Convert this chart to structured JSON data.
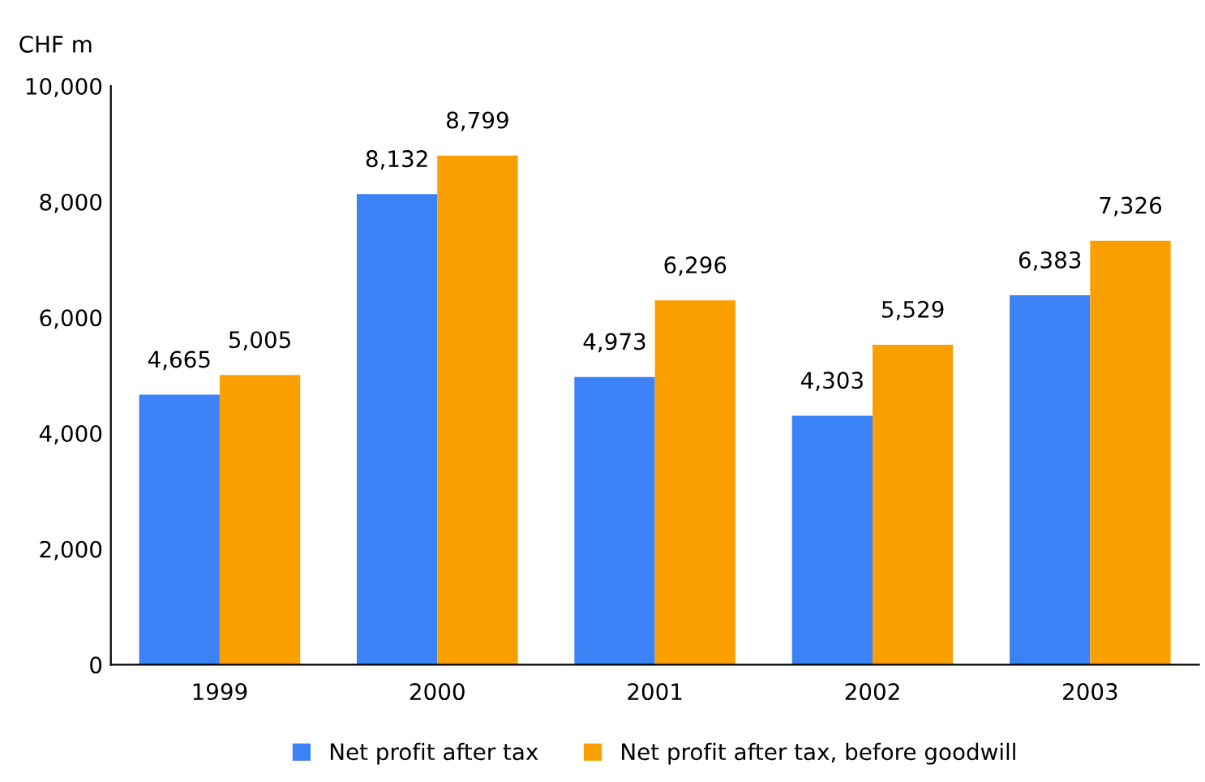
{
  "chart_data": {
    "type": "bar",
    "ylabel": "CHF m",
    "categories": [
      "1999",
      "2000",
      "2001",
      "2002",
      "2003"
    ],
    "series": [
      {
        "name": "Net profit after tax",
        "color": "#3b82f6",
        "values": [
          4665,
          8132,
          4973,
          4303,
          6383
        ],
        "value_labels": [
          "4,665",
          "8,132",
          "4,973",
          "4,303",
          "6,383"
        ]
      },
      {
        "name": "Net profit after tax, before goodwill",
        "color": "#f9a000",
        "values": [
          5005,
          8799,
          6296,
          5529,
          7326
        ],
        "value_labels": [
          "5,005",
          "8,799",
          "6,296",
          "5,529",
          "7,326"
        ]
      }
    ],
    "ylim": [
      0,
      10000
    ],
    "yticks": [
      {
        "value": 0,
        "label": "0"
      },
      {
        "value": 2000,
        "label": "2,000"
      },
      {
        "value": 4000,
        "label": "4,000"
      },
      {
        "value": 6000,
        "label": "6,000"
      },
      {
        "value": 8000,
        "label": "8,000"
      },
      {
        "value": 10000,
        "label": "10,000"
      }
    ],
    "grid": false,
    "legend": "bottom"
  }
}
